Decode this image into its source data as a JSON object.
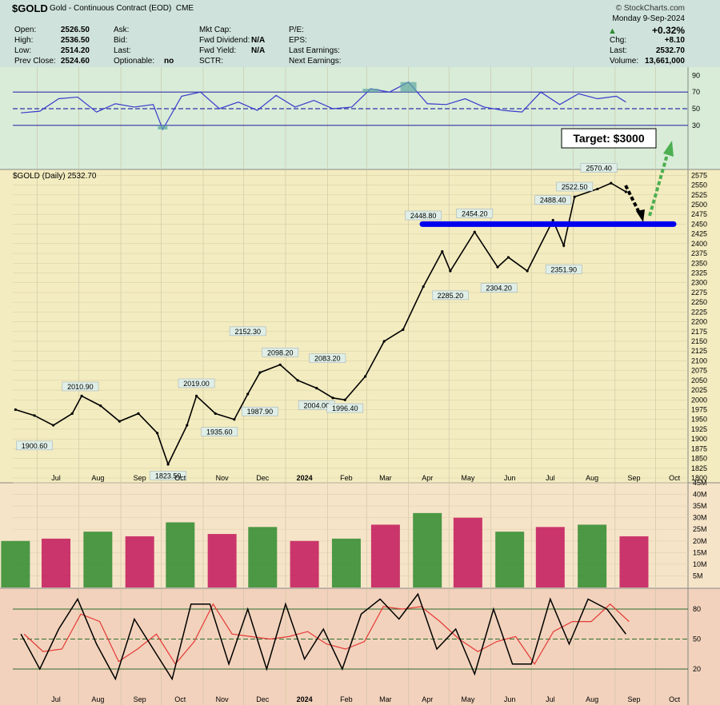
{
  "header": {
    "symbol": "$GOLD",
    "description": "Gold - Continuous Contract (EOD)",
    "exchange": "CME",
    "brand": "© StockCharts.com",
    "date": "Monday  9-Sep-2024",
    "change_pct": "+0.32%",
    "chg_label": "Chg:",
    "chg_value": "+8.10",
    "last_label": "Last:",
    "last_value": "2532.70",
    "volume_label": "Volume:",
    "volume_value": "13,661,000",
    "col1": [
      {
        "label": "Open:",
        "value": "2526.50"
      },
      {
        "label": "High:",
        "value": "2536.50"
      },
      {
        "label": "Low:",
        "value": "2514.20"
      },
      {
        "label": "Prev Close:",
        "value": "2524.60"
      }
    ],
    "col2": [
      {
        "label": "Ask:",
        "value": ""
      },
      {
        "label": "Bid:",
        "value": ""
      },
      {
        "label": "Last:",
        "value": ""
      },
      {
        "label": "Optionable:",
        "value": "no"
      }
    ],
    "col3": [
      {
        "label": "Mkt Cap:",
        "value": ""
      },
      {
        "label": "Fwd Dividend:",
        "value": "N/A"
      },
      {
        "label": "Fwd Yield:",
        "value": "N/A"
      },
      {
        "label": "SCTR:",
        "value": ""
      }
    ],
    "col4": [
      {
        "label": "P/E:",
        "value": ""
      },
      {
        "label": "EPS:",
        "value": ""
      },
      {
        "label": "Last Earnings:",
        "value": ""
      },
      {
        "label": "Next Earnings:",
        "value": ""
      }
    ]
  },
  "price_legend": "$GOLD (Daily) 2532.70",
  "target_label": "Target: $3000",
  "colors": {
    "rsi_fill": "#5fa8a0",
    "support_line": "#0000ee",
    "up": "#2e8b2e",
    "down": "#c2185b",
    "fast_line": "#000000",
    "slow_line": "#e53935",
    "target_arrow": "#4caf50"
  },
  "chart_data": [
    {
      "type": "line",
      "panel": "RSI",
      "ylim": [
        0,
        100
      ],
      "y_ticks": [
        90,
        70,
        50,
        30
      ],
      "levels": [
        70,
        50,
        30
      ],
      "x": [
        "2023-06-19",
        "2023-07-03",
        "2023-07-17",
        "2023-07-31",
        "2023-08-14",
        "2023-08-28",
        "2023-09-11",
        "2023-09-25",
        "2023-10-02",
        "2023-10-16",
        "2023-10-30",
        "2023-11-13",
        "2023-11-27",
        "2023-12-11",
        "2023-12-25",
        "2024-01-08",
        "2024-01-22",
        "2024-02-05",
        "2024-02-19",
        "2024-03-04",
        "2024-03-18",
        "2024-04-01",
        "2024-04-15",
        "2024-04-29",
        "2024-05-13",
        "2024-05-27",
        "2024-06-10",
        "2024-06-24",
        "2024-07-08",
        "2024-07-22",
        "2024-08-05",
        "2024-08-19",
        "2024-09-02",
        "2024-09-09"
      ],
      "values": [
        45,
        47,
        62,
        64,
        46,
        56,
        52,
        55,
        25,
        65,
        70,
        50,
        58,
        48,
        66,
        52,
        60,
        50,
        52,
        74,
        70,
        82,
        56,
        55,
        62,
        52,
        48,
        46,
        70,
        55,
        68,
        62,
        65,
        58
      ]
    },
    {
      "type": "line",
      "panel": "Price",
      "title": "$GOLD (Daily) 2532.70",
      "ylim": [
        1800,
        2590
      ],
      "y_ticks": [
        2575,
        2550,
        2525,
        2500,
        2475,
        2450,
        2425,
        2400,
        2375,
        2350,
        2325,
        2300,
        2275,
        2250,
        2225,
        2200,
        2175,
        2150,
        2125,
        2100,
        2075,
        2050,
        2025,
        2000,
        1975,
        1950,
        1925,
        1900,
        1875,
        1850,
        1825,
        1800
      ],
      "x_ticks": [
        "Jul",
        "Aug",
        "Sep",
        "Oct",
        "Nov",
        "Dec",
        "2024",
        "Feb",
        "Mar",
        "Apr",
        "May",
        "Jun",
        "Jul",
        "Aug",
        "Sep",
        "Oct"
      ],
      "x": [
        "2023-06-15",
        "2023-06-29",
        "2023-07-13",
        "2023-07-27",
        "2023-08-03",
        "2023-08-17",
        "2023-08-31",
        "2023-09-14",
        "2023-09-28",
        "2023-10-06",
        "2023-10-20",
        "2023-10-27",
        "2023-11-10",
        "2023-11-24",
        "2023-12-04",
        "2023-12-13",
        "2023-12-28",
        "2024-01-10",
        "2024-01-24",
        "2024-02-05",
        "2024-02-14",
        "2024-02-29",
        "2024-03-14",
        "2024-03-28",
        "2024-04-12",
        "2024-04-26",
        "2024-05-02",
        "2024-05-20",
        "2024-06-06",
        "2024-06-14",
        "2024-06-28",
        "2024-07-17",
        "2024-07-25",
        "2024-08-02",
        "2024-08-19",
        "2024-08-29",
        "2024-09-09"
      ],
      "values": [
        1975,
        1960,
        1935,
        1965,
        2010,
        1985,
        1945,
        1965,
        1915,
        1835,
        1935,
        2010,
        1965,
        1950,
        2015,
        2070,
        2090,
        2050,
        2030,
        2005,
        2000,
        2060,
        2150,
        2180,
        2290,
        2380,
        2330,
        2430,
        2340,
        2365,
        2330,
        2460,
        2395,
        2520,
        2540,
        2555,
        2532.7
      ],
      "annotations": [
        {
          "label": "2010.90",
          "x": "2023-08-02",
          "y": 2010.9
        },
        {
          "label": "1900.60",
          "x": "2023-06-29",
          "y": 1900.6
        },
        {
          "label": "2019.00",
          "x": "2023-10-27",
          "y": 2019.0
        },
        {
          "label": "1935.60",
          "x": "2023-11-13",
          "y": 1935.6
        },
        {
          "label": "1823.50",
          "x": "2023-10-06",
          "y": 1823.5
        },
        {
          "label": "2152.30",
          "x": "2023-12-04",
          "y": 2152.3
        },
        {
          "label": "1987.90",
          "x": "2023-12-13",
          "y": 1987.9
        },
        {
          "label": "2098.20",
          "x": "2023-12-28",
          "y": 2098.2
        },
        {
          "label": "2083.20",
          "x": "2024-02-01",
          "y": 2083.2
        },
        {
          "label": "2004.00",
          "x": "2024-01-24",
          "y": 2004.0
        },
        {
          "label": "1996.40",
          "x": "2024-02-14",
          "y": 1996.4
        },
        {
          "label": "2448.80",
          "x": "2024-04-12",
          "y": 2448.8
        },
        {
          "label": "2454.20",
          "x": "2024-05-20",
          "y": 2454.2
        },
        {
          "label": "2285.20",
          "x": "2024-05-02",
          "y": 2285.2
        },
        {
          "label": "2304.20",
          "x": "2024-06-07",
          "y": 2304.2
        },
        {
          "label": "2488.40",
          "x": "2024-07-17",
          "y": 2488.4
        },
        {
          "label": "2351.90",
          "x": "2024-07-25",
          "y": 2351.9
        },
        {
          "label": "2522.50",
          "x": "2024-08-02",
          "y": 2522.5
        },
        {
          "label": "2570.40",
          "x": "2024-08-20",
          "y": 2570.4
        }
      ],
      "support_level": 2450
    },
    {
      "type": "bar",
      "panel": "Volume",
      "ylim": [
        0,
        45000000
      ],
      "y_ticks": [
        "45M",
        "40M",
        "35M",
        "30M",
        "25M",
        "20M",
        "15M",
        "10M",
        "5M"
      ],
      "x": [
        "2023-06",
        "2023-07",
        "2023-08",
        "2023-09",
        "2023-10",
        "2023-11",
        "2023-12",
        "2024-01",
        "2024-02",
        "2024-03",
        "2024-04",
        "2024-05",
        "2024-06",
        "2024-07",
        "2024-08",
        "2024-09"
      ],
      "values": [
        20000000,
        21000000,
        24000000,
        22000000,
        28000000,
        23000000,
        26000000,
        20000000,
        21000000,
        27000000,
        32000000,
        30000000,
        24000000,
        26000000,
        27000000,
        22000000
      ]
    },
    {
      "type": "line",
      "panel": "Stochastic",
      "ylim": [
        0,
        100
      ],
      "y_ticks": [
        80,
        50,
        20
      ],
      "levels": [
        80,
        50,
        20
      ],
      "x_ticks": [
        "Jul",
        "Aug",
        "Sep",
        "Oct",
        "Nov",
        "Dec",
        "2024",
        "Feb",
        "Mar",
        "Apr",
        "May",
        "Jun",
        "Jul",
        "Aug",
        "Sep",
        "Oct"
      ],
      "series": [
        {
          "x": [
            "2023-06-19",
            "2023-07-03",
            "2023-07-17",
            "2023-07-31",
            "2023-08-14",
            "2023-08-28",
            "2023-09-11",
            "2023-09-25",
            "2023-10-09",
            "2023-10-23",
            "2023-11-06",
            "2023-11-20",
            "2023-12-04",
            "2023-12-18",
            "2024-01-01",
            "2024-01-15",
            "2024-01-29",
            "2024-02-12",
            "2024-02-26",
            "2024-03-11",
            "2024-03-25",
            "2024-04-08",
            "2024-04-22",
            "2024-05-06",
            "2024-05-20",
            "2024-06-03",
            "2024-06-17",
            "2024-07-01",
            "2024-07-15",
            "2024-07-29",
            "2024-08-12",
            "2024-08-26",
            "2024-09-09"
          ],
          "values": [
            55,
            20,
            60,
            90,
            45,
            10,
            70,
            40,
            10,
            85,
            85,
            25,
            80,
            20,
            85,
            30,
            60,
            20,
            75,
            90,
            70,
            95,
            40,
            60,
            15,
            80,
            25,
            25,
            90,
            45,
            90,
            80,
            55
          ]
        }
      ]
    }
  ]
}
